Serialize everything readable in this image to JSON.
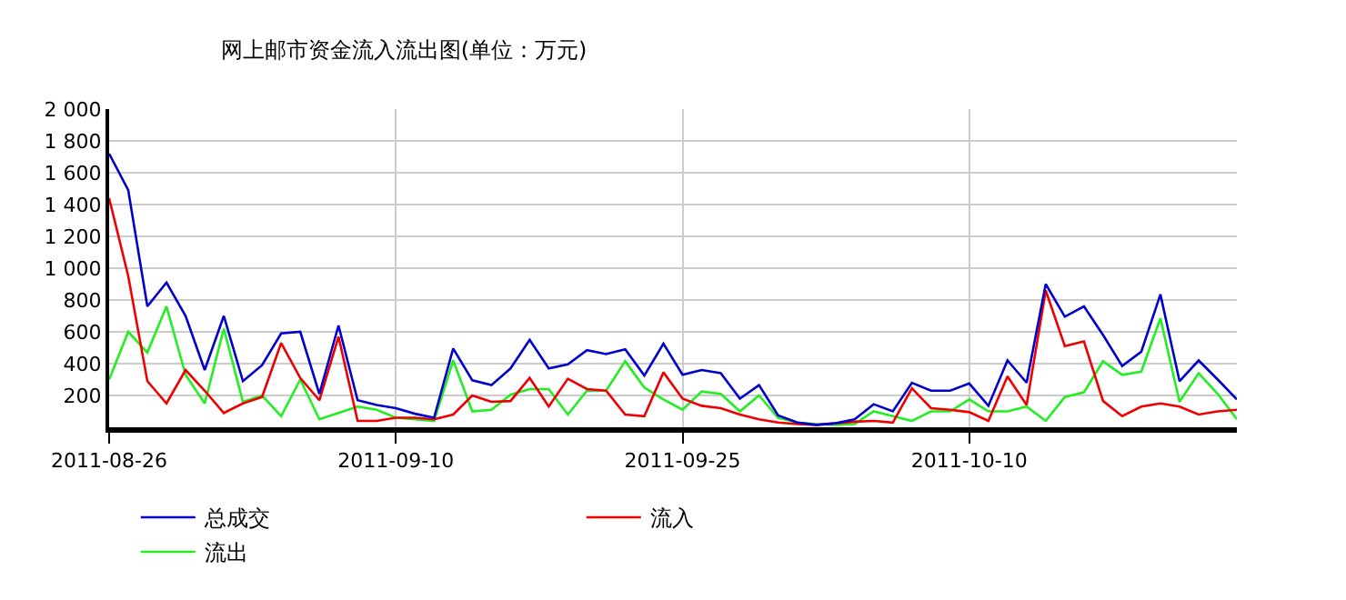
{
  "chart_data": {
    "type": "line",
    "title": "网上邮市资金流入流出图(单位：万元)",
    "x": [
      "2011-08-26",
      "2011-08-27",
      "2011-08-28",
      "2011-08-29",
      "2011-08-30",
      "2011-08-31",
      "2011-09-01",
      "2011-09-02",
      "2011-09-03",
      "2011-09-04",
      "2011-09-05",
      "2011-09-06",
      "2011-09-07",
      "2011-09-08",
      "2011-09-09",
      "2011-09-10",
      "2011-09-11",
      "2011-09-12",
      "2011-09-13",
      "2011-09-14",
      "2011-09-15",
      "2011-09-16",
      "2011-09-17",
      "2011-09-18",
      "2011-09-19",
      "2011-09-20",
      "2011-09-21",
      "2011-09-22",
      "2011-09-23",
      "2011-09-24",
      "2011-09-25",
      "2011-09-26",
      "2011-09-27",
      "2011-09-28",
      "2011-09-29",
      "2011-09-30",
      "2011-10-01",
      "2011-10-02",
      "2011-10-03",
      "2011-10-04",
      "2011-10-05",
      "2011-10-06",
      "2011-10-07",
      "2011-10-08",
      "2011-10-09",
      "2011-10-10",
      "2011-10-11",
      "2011-10-12",
      "2011-10-13",
      "2011-10-14",
      "2011-10-15",
      "2011-10-16",
      "2011-10-17",
      "2011-10-18",
      "2011-10-19",
      "2011-10-20",
      "2011-10-21",
      "2011-10-22",
      "2011-10-23",
      "2011-10-24"
    ],
    "series": [
      {
        "name": "总成交",
        "color": "#0000cc",
        "values": [
          1720,
          1490,
          760,
          910,
          700,
          360,
          700,
          290,
          390,
          590,
          600,
          210,
          640,
          170,
          140,
          120,
          85,
          60,
          495,
          295,
          265,
          370,
          550,
          370,
          395,
          485,
          460,
          490,
          325,
          525,
          330,
          360,
          340,
          180,
          265,
          75,
          30,
          15,
          25,
          50,
          145,
          100,
          280,
          230,
          230,
          275,
          135,
          420,
          280,
          900,
          695,
          760,
          580,
          385,
          475,
          835,
          290,
          420,
          300,
          175
        ]
      },
      {
        "name": "流入",
        "color": "#ee0000",
        "values": [
          1440,
          950,
          290,
          150,
          360,
          230,
          90,
          150,
          190,
          530,
          310,
          170,
          570,
          40,
          40,
          60,
          60,
          50,
          80,
          200,
          160,
          165,
          310,
          130,
          305,
          240,
          230,
          80,
          70,
          345,
          180,
          135,
          120,
          80,
          50,
          30,
          20,
          15,
          25,
          35,
          40,
          30,
          245,
          120,
          110,
          95,
          40,
          320,
          140,
          860,
          510,
          540,
          165,
          70,
          130,
          150,
          130,
          80,
          100,
          110
        ]
      },
      {
        "name": "流出",
        "color": "#22ee22",
        "values": [
          300,
          600,
          470,
          760,
          330,
          150,
          620,
          160,
          200,
          70,
          300,
          50,
          90,
          130,
          110,
          60,
          50,
          40,
          420,
          100,
          110,
          205,
          240,
          240,
          80,
          230,
          230,
          415,
          250,
          175,
          110,
          225,
          210,
          100,
          200,
          60,
          30,
          20,
          15,
          20,
          100,
          70,
          40,
          100,
          100,
          175,
          100,
          100,
          130,
          40,
          190,
          220,
          415,
          330,
          350,
          685,
          160,
          340,
          210,
          50
        ]
      }
    ],
    "xlim": [
      "2011-08-26",
      "2011-10-24"
    ],
    "xticks": [
      "2011-08-26",
      "2011-09-10",
      "2011-09-25",
      "2011-10-10"
    ],
    "ylim": [
      0,
      2000
    ],
    "yticks": [
      {
        "value": 200,
        "label": "200"
      },
      {
        "value": 400,
        "label": "400"
      },
      {
        "value": 600,
        "label": "600"
      },
      {
        "value": 800,
        "label": "800"
      },
      {
        "value": 1000,
        "label": "1 000"
      },
      {
        "value": 1200,
        "label": "1 200"
      },
      {
        "value": 1400,
        "label": "1 400"
      },
      {
        "value": 1600,
        "label": "1 600"
      },
      {
        "value": 1800,
        "label": "1 800"
      },
      {
        "value": 2000,
        "label": "2 000"
      }
    ],
    "grid": true,
    "legend": "bottom",
    "marker": "none",
    "line_style": "solid"
  }
}
